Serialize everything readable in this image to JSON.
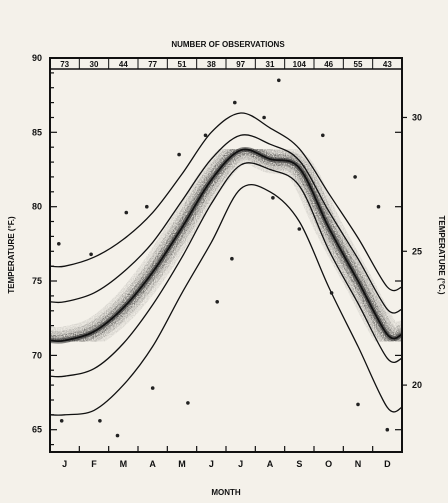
{
  "chart_data": {
    "type": "line",
    "title": "NUMBER OF OBSERVATIONS",
    "xlabel": "MONTH",
    "ylabel": "TEMPERATURE (°F.)",
    "ylabel_right": "TEMPERATURE (°C.)",
    "categories": [
      "J",
      "F",
      "M",
      "A",
      "M",
      "J",
      "J",
      "A",
      "S",
      "O",
      "N",
      "D"
    ],
    "observations": [
      "73",
      "30",
      "44",
      "77",
      "51",
      "38",
      "97",
      "31",
      "104",
      "46",
      "55",
      "43"
    ],
    "ylim": [
      63.5,
      90
    ],
    "yticks_f": [
      65,
      70,
      75,
      80,
      85,
      90
    ],
    "yticks_c": [
      20,
      25,
      30
    ],
    "x": [
      0.5,
      1.5,
      2.5,
      3.5,
      4.5,
      5.5,
      6.5,
      7.5,
      8.5,
      9.5,
      10.5,
      11.5
    ],
    "series": [
      {
        "values": [
          76.0,
          76.6,
          77.8,
          79.6,
          82.2,
          85.0,
          86.3,
          85.3,
          83.9,
          80.9,
          77.9,
          74.6
        ]
      },
      {
        "values": [
          73.6,
          74.2,
          75.6,
          77.6,
          80.4,
          83.2,
          84.8,
          84.2,
          83.1,
          79.7,
          76.5,
          73.1
        ]
      },
      {
        "values": [
          71.0,
          71.6,
          73.2,
          75.6,
          78.6,
          81.8,
          83.8,
          83.2,
          82.6,
          78.6,
          75.0,
          71.4
        ]
      },
      {
        "values": [
          68.6,
          69.1,
          70.8,
          73.4,
          76.6,
          80.2,
          82.8,
          82.5,
          81.4,
          77.1,
          73.5,
          69.8
        ]
      },
      {
        "values": [
          66.0,
          66.3,
          68.0,
          70.6,
          74.2,
          77.6,
          81.2,
          81.0,
          79.0,
          74.6,
          70.6,
          66.5
        ]
      }
    ],
    "scatter": [
      {
        "x": 0.3,
        "y": 77.5
      },
      {
        "x": 0.4,
        "y": 65.6
      },
      {
        "x": 1.4,
        "y": 76.8
      },
      {
        "x": 1.7,
        "y": 65.6
      },
      {
        "x": 2.6,
        "y": 79.6
      },
      {
        "x": 2.3,
        "y": 64.6
      },
      {
        "x": 3.3,
        "y": 80.0
      },
      {
        "x": 3.5,
        "y": 67.8
      },
      {
        "x": 4.4,
        "y": 83.5
      },
      {
        "x": 4.7,
        "y": 66.8
      },
      {
        "x": 5.3,
        "y": 84.8
      },
      {
        "x": 5.7,
        "y": 73.6
      },
      {
        "x": 6.3,
        "y": 87.0
      },
      {
        "x": 6.2,
        "y": 76.5
      },
      {
        "x": 7.3,
        "y": 86.0
      },
      {
        "x": 7.6,
        "y": 80.6
      },
      {
        "x": 7.8,
        "y": 88.5
      },
      {
        "x": 8.5,
        "y": 78.5
      },
      {
        "x": 9.3,
        "y": 84.8
      },
      {
        "x": 9.6,
        "y": 74.2
      },
      {
        "x": 10.4,
        "y": 82.0
      },
      {
        "x": 10.5,
        "y": 66.7
      },
      {
        "x": 11.2,
        "y": 80.0
      },
      {
        "x": 11.5,
        "y": 65.0
      }
    ]
  }
}
